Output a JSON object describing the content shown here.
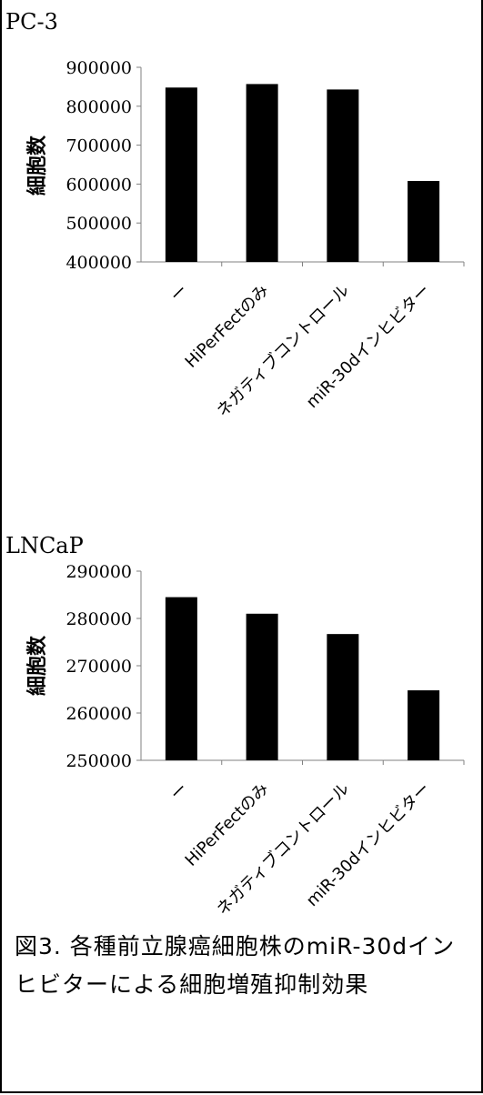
{
  "chart_data": [
    {
      "type": "bar",
      "title": "PC-3",
      "ylabel": "細胞数",
      "xlabel": "",
      "categories": [
        "ー",
        "HiPerFectのみ",
        "ネガティブコントロール",
        "miR-30dインヒビター"
      ],
      "values": [
        848000,
        857000,
        843000,
        608000
      ],
      "ylim": [
        400000,
        900000
      ],
      "yticks": [
        400000,
        500000,
        600000,
        700000,
        800000,
        900000
      ],
      "grid": false,
      "legend": "none"
    },
    {
      "type": "bar",
      "title": "LNCaP",
      "ylabel": "細胞数",
      "xlabel": "",
      "categories": [
        "ー",
        "HiPerFectのみ",
        "ネガティブコントロール",
        "miR-30dインヒビター"
      ],
      "values": [
        284500,
        281000,
        276700,
        264800
      ],
      "ylim": [
        250000,
        290000
      ],
      "yticks": [
        250000,
        260000,
        270000,
        280000,
        290000
      ],
      "grid": false,
      "legend": "none"
    }
  ],
  "caption": {
    "line1": "図3. 各種前立腺癌細胞株のmiR-30dインヒビターによる細胞増殖抑制効果"
  },
  "colors": {
    "bar": "#000000",
    "axis": "#808080"
  }
}
